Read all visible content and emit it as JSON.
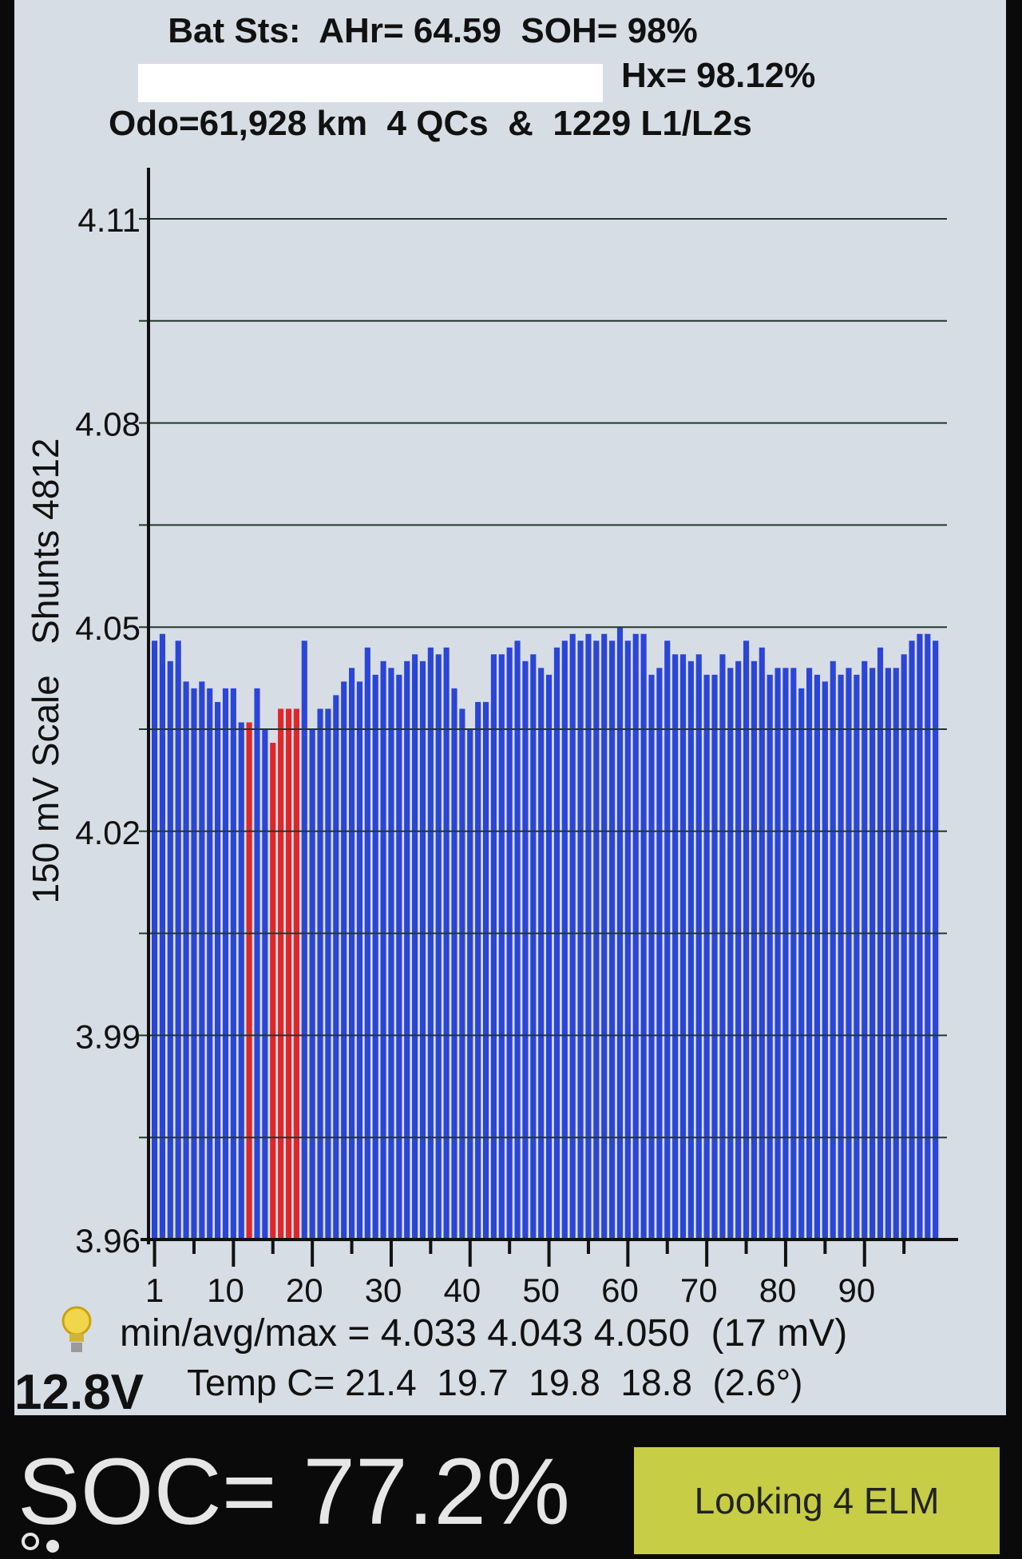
{
  "header": {
    "line1": "Bat Sts:  AHr= 64.59  SOH= 98%",
    "line2": "Hx= 98.12%",
    "line3": "Odo=61,928 km  4 QCs  &  1229 L1/L2s"
  },
  "chart_data": {
    "type": "bar",
    "ylabel": "150 mV Scale   Shunts 4812",
    "ylim": [
      3.96,
      4.11
    ],
    "yticks": [
      "4.11",
      "4.08",
      "4.05",
      "4.02",
      "3.99",
      "3.96"
    ],
    "xticks": [
      "1",
      "10",
      "20",
      "30",
      "40",
      "50",
      "60",
      "70",
      "80",
      "90"
    ],
    "colors": {
      "normal": "#2b45d6",
      "shunt": "#e0262a",
      "grid": "#1f3a2a"
    },
    "shunted_cells": [
      13,
      16,
      17,
      18,
      19
    ],
    "values": [
      4.048,
      4.049,
      4.045,
      4.048,
      4.042,
      4.041,
      4.042,
      4.041,
      4.039,
      4.041,
      4.041,
      4.036,
      4.036,
      4.041,
      4.035,
      4.033,
      4.038,
      4.038,
      4.038,
      4.048,
      4.035,
      4.038,
      4.038,
      4.04,
      4.042,
      4.044,
      4.042,
      4.047,
      4.043,
      4.045,
      4.044,
      4.043,
      4.045,
      4.046,
      4.045,
      4.047,
      4.046,
      4.047,
      4.041,
      4.038,
      4.035,
      4.039,
      4.039,
      4.046,
      4.046,
      4.047,
      4.048,
      4.045,
      4.046,
      4.044,
      4.043,
      4.047,
      4.048,
      4.049,
      4.048,
      4.049,
      4.048,
      4.049,
      4.048,
      4.05,
      4.048,
      4.049,
      4.049,
      4.043,
      4.044,
      4.048,
      4.046,
      4.046,
      4.045,
      4.046,
      4.043,
      4.043,
      4.046,
      4.044,
      4.045,
      4.048,
      4.045,
      4.047,
      4.043,
      4.044,
      4.044,
      4.044,
      4.041,
      4.044,
      4.043,
      4.042,
      4.045,
      4.043,
      4.044,
      4.043,
      4.045,
      4.044,
      4.047,
      4.044,
      4.044,
      4.046,
      4.048,
      4.049,
      4.049,
      4.048
    ]
  },
  "stats": {
    "minmax": "min/avg/max = 4.033 4.043 4.050  (17 mV)",
    "temp": "Temp C= 21.4  19.7  19.8  18.8  (2.6°)",
    "voltage": "12.8V"
  },
  "soc": "SOC= 77.2%",
  "button_label": "Looking 4 ELM"
}
